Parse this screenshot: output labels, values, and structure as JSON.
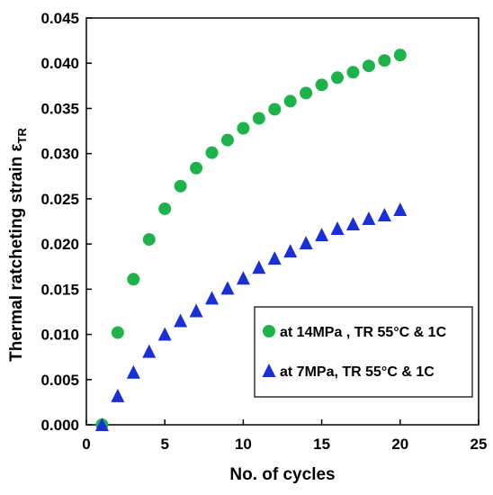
{
  "chart_data": {
    "type": "scatter",
    "xlabel": "No. of cycles",
    "ylabel": "Thermal ratcheting strain ",
    "ylabel_symbol": "ε",
    "ylabel_subscript": "TR",
    "xlim": [
      0,
      25
    ],
    "ylim": [
      0,
      0.045
    ],
    "xticks": [
      0,
      5,
      10,
      15,
      20,
      25
    ],
    "yticks": [
      0.0,
      0.005,
      0.01,
      0.015,
      0.02,
      0.025,
      0.03,
      0.035,
      0.04,
      0.045
    ],
    "xtick_labels": [
      "0",
      "5",
      "10",
      "15",
      "20",
      "25"
    ],
    "ytick_labels": [
      "0.000",
      "0.005",
      "0.010",
      "0.015",
      "0.020",
      "0.025",
      "0.030",
      "0.035",
      "0.040",
      "0.045"
    ],
    "grid": false,
    "legend_position": "lower-right",
    "series": [
      {
        "name": "at 14MPa , TR 55°C & 1C",
        "marker": "circle",
        "color": "#1db34a",
        "x": [
          1,
          2,
          3,
          4,
          5,
          6,
          7,
          8,
          9,
          10,
          11,
          12,
          13,
          14,
          15,
          16,
          17,
          18,
          19,
          20
        ],
        "y": [
          0.0,
          0.0102,
          0.0161,
          0.0205,
          0.0239,
          0.0264,
          0.0284,
          0.0301,
          0.0315,
          0.0328,
          0.0339,
          0.0349,
          0.0358,
          0.0367,
          0.0376,
          0.0384,
          0.039,
          0.0397,
          0.0403,
          0.0409
        ]
      },
      {
        "name": "at 7MPa, TR 55°C & 1C",
        "marker": "triangle",
        "color": "#1a2fd6",
        "x": [
          1,
          2,
          3,
          4,
          5,
          6,
          7,
          8,
          9,
          10,
          11,
          12,
          13,
          14,
          15,
          16,
          17,
          18,
          19,
          20
        ],
        "y": [
          0.0,
          0.0032,
          0.0058,
          0.0081,
          0.01,
          0.0115,
          0.0126,
          0.014,
          0.0151,
          0.0162,
          0.0174,
          0.0184,
          0.0192,
          0.0201,
          0.021,
          0.0217,
          0.0222,
          0.0228,
          0.0232,
          0.0238
        ]
      }
    ]
  }
}
